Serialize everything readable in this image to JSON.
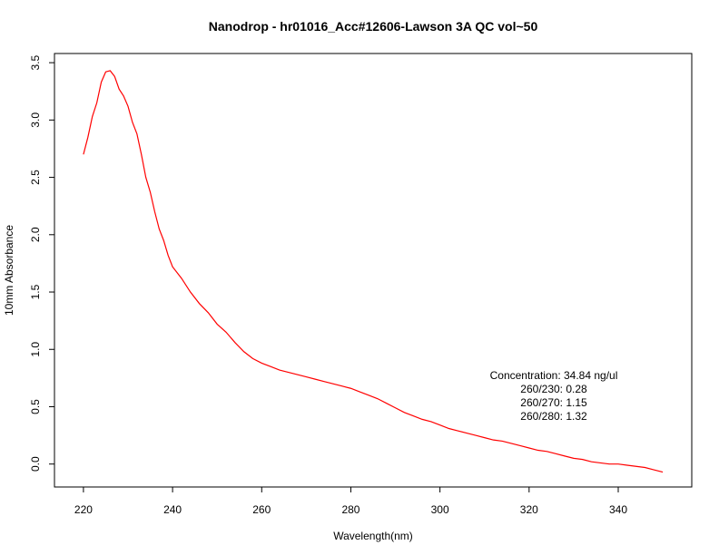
{
  "chart_data": {
    "type": "line",
    "title": "Nanodrop - hr01016_Acc#12606-Lawson 3A QC vol~50",
    "xlabel": "Wavelength(nm)",
    "ylabel": "10mm Absorbance",
    "xlim": [
      213.5,
      356.5
    ],
    "ylim": [
      -0.2,
      3.58
    ],
    "x_ticks": [
      220,
      240,
      260,
      280,
      300,
      320,
      340
    ],
    "y_ticks": [
      0.0,
      0.5,
      1.0,
      1.5,
      2.0,
      2.5,
      3.0,
      3.5
    ],
    "x_tick_labels": [
      "220",
      "240",
      "260",
      "280",
      "300",
      "320",
      "340"
    ],
    "y_tick_labels": [
      "0.0",
      "0.5",
      "1.0",
      "1.5",
      "2.0",
      "2.5",
      "3.0",
      "3.5"
    ],
    "grid": false,
    "series": [
      {
        "color": "#ff0000",
        "x": [
          220,
          221,
          222,
          223,
          224,
          225,
          226,
          227,
          228,
          229,
          230,
          231,
          232,
          233,
          234,
          235,
          236,
          237,
          238,
          239,
          240,
          242,
          244,
          246,
          248,
          250,
          252,
          254,
          256,
          258,
          260,
          262,
          264,
          266,
          268,
          270,
          272,
          274,
          276,
          278,
          280,
          282,
          284,
          286,
          288,
          290,
          292,
          294,
          296,
          298,
          300,
          302,
          304,
          306,
          308,
          310,
          312,
          314,
          316,
          318,
          320,
          322,
          324,
          326,
          328,
          330,
          332,
          334,
          336,
          338,
          340,
          342,
          344,
          346,
          348,
          350
        ],
        "y": [
          2.7,
          2.85,
          3.03,
          3.15,
          3.33,
          3.42,
          3.43,
          3.38,
          3.27,
          3.21,
          3.12,
          2.98,
          2.88,
          2.7,
          2.5,
          2.37,
          2.2,
          2.05,
          1.95,
          1.82,
          1.72,
          1.62,
          1.5,
          1.4,
          1.32,
          1.22,
          1.15,
          1.06,
          0.98,
          0.92,
          0.88,
          0.85,
          0.82,
          0.8,
          0.78,
          0.76,
          0.74,
          0.72,
          0.7,
          0.68,
          0.66,
          0.63,
          0.6,
          0.57,
          0.53,
          0.49,
          0.45,
          0.42,
          0.39,
          0.37,
          0.34,
          0.31,
          0.29,
          0.27,
          0.25,
          0.23,
          0.21,
          0.2,
          0.18,
          0.16,
          0.14,
          0.12,
          0.11,
          0.09,
          0.07,
          0.05,
          0.04,
          0.02,
          0.01,
          0.0,
          0.0,
          -0.01,
          -0.02,
          -0.03,
          -0.05,
          -0.07
        ]
      }
    ],
    "annotations": [
      "Concentration: 34.84 ng/ul",
      "260/230: 0.28",
      "260/270: 1.15",
      "260/280: 1.32"
    ]
  }
}
